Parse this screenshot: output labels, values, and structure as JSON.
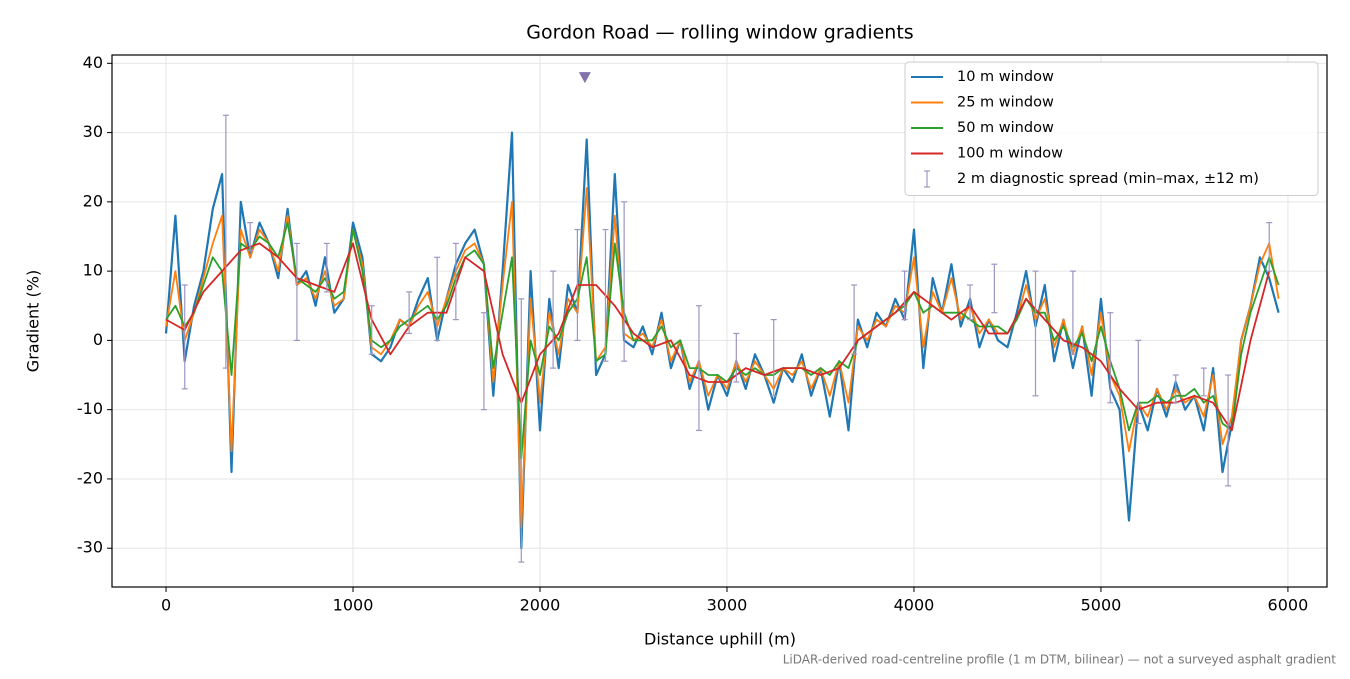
{
  "chart_data": {
    "type": "line",
    "title": "Gordon Road — rolling window gradients",
    "xlabel": "Distance uphill (m)",
    "ylabel": "Gradient (%)",
    "footnote": "LiDAR-derived road-centreline profile (1 m DTM, bilinear) — not a surveyed asphalt gradient",
    "xlim": [
      -289,
      6209
    ],
    "ylim": [
      -35.6,
      41.2
    ],
    "xticks": [
      0,
      1000,
      2000,
      3000,
      4000,
      5000,
      6000
    ],
    "yticks": [
      -30,
      -20,
      -10,
      0,
      10,
      20,
      30,
      40
    ],
    "grid": true,
    "legend": "upper right",
    "x": [
      0,
      50,
      100,
      150,
      200,
      250,
      300,
      350,
      400,
      450,
      500,
      550,
      600,
      650,
      700,
      750,
      800,
      850,
      900,
      950,
      1000,
      1050,
      1100,
      1150,
      1200,
      1250,
      1300,
      1350,
      1400,
      1450,
      1500,
      1550,
      1600,
      1650,
      1700,
      1750,
      1800,
      1850,
      1900,
      1950,
      2000,
      2050,
      2100,
      2150,
      2200,
      2250,
      2300,
      2350,
      2400,
      2450,
      2500,
      2550,
      2600,
      2650,
      2700,
      2750,
      2800,
      2850,
      2900,
      2950,
      3000,
      3050,
      3100,
      3150,
      3200,
      3250,
      3300,
      3350,
      3400,
      3450,
      3500,
      3550,
      3600,
      3650,
      3700,
      3750,
      3800,
      3850,
      3900,
      3950,
      4000,
      4050,
      4100,
      4150,
      4200,
      4250,
      4300,
      4350,
      4400,
      4450,
      4500,
      4550,
      4600,
      4650,
      4700,
      4750,
      4800,
      4850,
      4900,
      4950,
      5000,
      5050,
      5100,
      5150,
      5200,
      5250,
      5300,
      5350,
      5400,
      5450,
      5500,
      5550,
      5600,
      5650,
      5700,
      5750,
      5800,
      5850,
      5900,
      5950
    ],
    "series": [
      {
        "name": "10 m window",
        "color": "#1f77b4",
        "values": [
          1,
          18,
          -3,
          5,
          10,
          19,
          24,
          -19,
          20,
          12,
          17,
          14,
          9,
          19,
          8,
          10,
          5,
          12,
          4,
          6,
          17,
          12,
          -2,
          -3,
          -1,
          3,
          2,
          6,
          9,
          0,
          6,
          11,
          14,
          16,
          11,
          -8,
          10,
          30,
          -30,
          10,
          -13,
          6,
          -4,
          8,
          4,
          29,
          -5,
          -2,
          24,
          0,
          -1,
          2,
          -2,
          4,
          -4,
          0,
          -7,
          -3,
          -10,
          -5,
          -8,
          -3,
          -7,
          -2,
          -5,
          -9,
          -4,
          -6,
          -2,
          -8,
          -4,
          -11,
          -3,
          -13,
          3,
          -1,
          4,
          2,
          6,
          3,
          16,
          -4,
          9,
          4,
          11,
          2,
          6,
          -1,
          3,
          0,
          -1,
          4,
          10,
          2,
          8,
          -3,
          3,
          -4,
          2,
          -8,
          6,
          -7,
          -10,
          -26,
          -9,
          -13,
          -7,
          -11,
          -6,
          -10,
          -8,
          -13,
          -4,
          -19,
          -12,
          0,
          5,
          12,
          9,
          4
        ]
      },
      {
        "name": "25 m window",
        "color": "#ff7f0e",
        "values": [
          2,
          10,
          0,
          4,
          9,
          14,
          18,
          -16,
          16,
          12,
          16,
          14,
          10,
          18,
          8,
          9,
          6,
          10,
          5,
          6,
          16,
          11,
          -1,
          -2,
          0,
          3,
          2,
          5,
          7,
          2,
          6,
          10,
          13,
          14,
          11,
          -6,
          8,
          20,
          -27,
          6,
          -9,
          4,
          -2,
          6,
          4,
          22,
          -3,
          -1,
          18,
          1,
          0,
          1,
          -1,
          3,
          -3,
          0,
          -6,
          -3,
          -8,
          -5,
          -7,
          -3,
          -6,
          -3,
          -5,
          -7,
          -4,
          -5,
          -3,
          -7,
          -4,
          -8,
          -3,
          -9,
          2,
          0,
          3,
          2,
          5,
          4,
          12,
          -1,
          7,
          4,
          9,
          3,
          5,
          1,
          3,
          1,
          1,
          3,
          8,
          3,
          6,
          -1,
          3,
          -2,
          2,
          -5,
          4,
          -5,
          -8,
          -16,
          -9,
          -11,
          -7,
          -10,
          -7,
          -9,
          -8,
          -11,
          -5,
          -15,
          -11,
          0,
          5,
          11,
          14,
          6
        ]
      },
      {
        "name": "50 m window",
        "color": "#2ca02c",
        "values": [
          3,
          5,
          2,
          4,
          8,
          12,
          10,
          -5,
          14,
          13,
          15,
          14,
          12,
          17,
          9,
          8,
          7,
          9,
          6,
          7,
          16,
          10,
          0,
          -1,
          0,
          2,
          3,
          4,
          5,
          3,
          5,
          9,
          12,
          13,
          11,
          -4,
          4,
          12,
          -17,
          0,
          -5,
          2,
          0,
          4,
          6,
          12,
          -3,
          -2,
          14,
          4,
          0,
          0,
          0,
          2,
          -1,
          0,
          -4,
          -4,
          -5,
          -5,
          -6,
          -4,
          -5,
          -4,
          -5,
          -5,
          -4,
          -4,
          -4,
          -5,
          -4,
          -5,
          -3,
          -4,
          0,
          1,
          2,
          3,
          4,
          5,
          7,
          4,
          5,
          4,
          4,
          4,
          3,
          2,
          2,
          2,
          1,
          3,
          6,
          4,
          4,
          0,
          2,
          -1,
          1,
          -3,
          2,
          -3,
          -7,
          -13,
          -9,
          -9,
          -8,
          -9,
          -8,
          -8,
          -7,
          -9,
          -8,
          -12,
          -13,
          -2,
          4,
          8,
          12,
          8
        ]
      },
      {
        "name": "100 m window",
        "color": "#d62728",
        "x": [
          0,
          100,
          200,
          300,
          400,
          500,
          600,
          700,
          800,
          900,
          1000,
          1100,
          1200,
          1300,
          1400,
          1500,
          1600,
          1700,
          1800,
          1900,
          2000,
          2100,
          2200,
          2300,
          2400,
          2500,
          2600,
          2700,
          2800,
          2900,
          3000,
          3100,
          3200,
          3300,
          3400,
          3500,
          3600,
          3700,
          3800,
          3900,
          4000,
          4100,
          4200,
          4300,
          4400,
          4500,
          4600,
          4700,
          4800,
          4900,
          5000,
          5100,
          5200,
          5300,
          5400,
          5500,
          5600,
          5700,
          5800,
          5900
        ],
        "values": [
          3,
          1.5,
          7,
          10,
          13,
          14,
          12,
          9,
          8,
          7,
          14,
          3,
          -2,
          2,
          4,
          4,
          12,
          10,
          -2,
          -9,
          -2,
          1,
          8,
          8,
          5,
          1,
          -1,
          0,
          -5,
          -6,
          -6,
          -4,
          -5,
          -4,
          -4,
          -5,
          -4,
          0,
          2,
          4,
          7,
          5,
          3,
          5,
          1,
          1,
          6,
          3,
          0,
          -1,
          -3,
          -7,
          -10,
          -9,
          -9,
          -8,
          -9,
          -13,
          0,
          10
        ]
      },
      {
        "name": "2 m diagnostic spread (min–max, ±12 m)",
        "color": "#9f95c2",
        "type": "errorbar",
        "x": [
          100,
          320,
          450,
          700,
          860,
          1100,
          1300,
          1450,
          1550,
          1700,
          1900,
          2070,
          2200,
          2350,
          2450,
          2850,
          3050,
          3250,
          3680,
          3950,
          4300,
          4430,
          4650,
          4850,
          5050,
          5200,
          5400,
          5550,
          5680,
          5900
        ],
        "low": [
          -7,
          -4,
          13,
          0,
          7,
          -2,
          1,
          0,
          3,
          -10,
          -32,
          -4,
          0,
          -3,
          -3,
          -13,
          -6,
          -8,
          -2,
          3,
          3,
          4,
          -8,
          -2,
          -9,
          -12,
          -9,
          -8,
          -21,
          10
        ],
        "high": [
          8,
          32.5,
          17,
          14,
          14,
          5,
          7,
          12,
          14,
          4,
          6,
          10,
          16,
          16,
          20,
          5,
          1,
          3,
          8,
          10,
          8,
          11,
          10,
          10,
          4,
          0,
          -5,
          -4,
          -5,
          17
        ]
      }
    ],
    "marker": {
      "x": 2240,
      "y": 38,
      "color": "#8073ac"
    }
  }
}
